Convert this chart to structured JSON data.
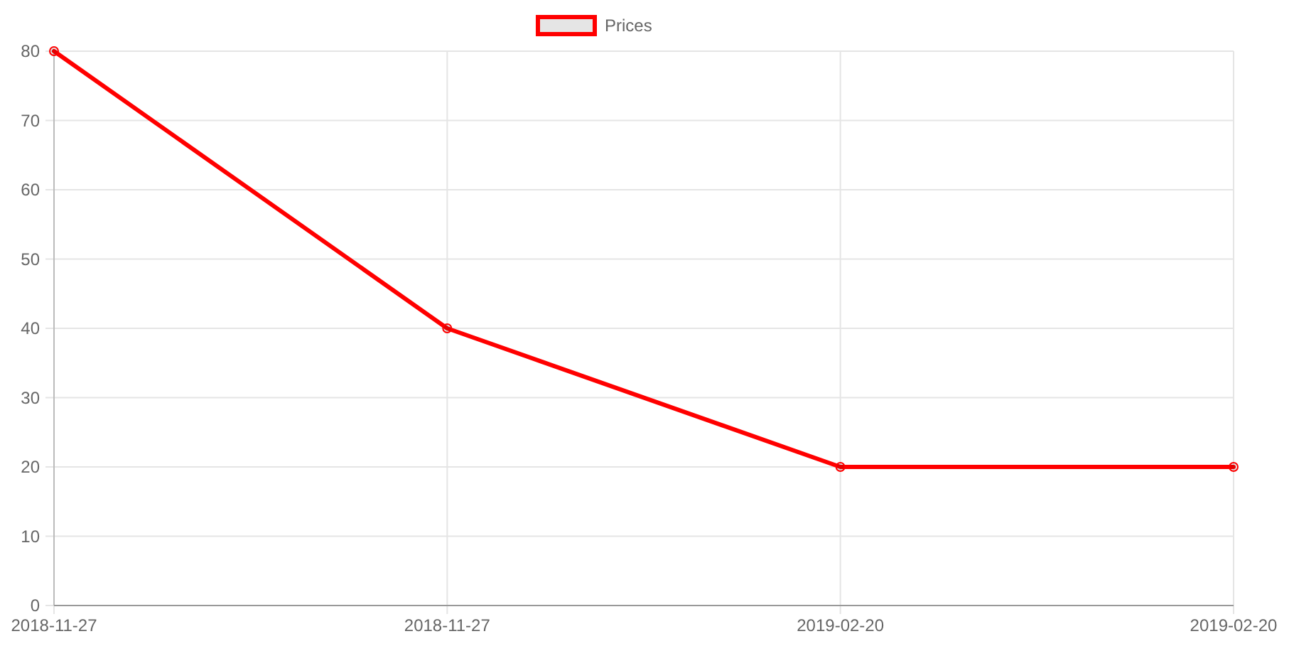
{
  "chart_data": {
    "type": "line",
    "categories": [
      "2018-11-27",
      "2018-11-27",
      "2019-02-20",
      "2019-02-20"
    ],
    "series": [
      {
        "name": "Prices",
        "color": "#ff0000",
        "values": [
          80,
          40,
          20,
          20
        ]
      }
    ],
    "ylim": [
      0,
      80
    ],
    "yticks": [
      0,
      10,
      20,
      30,
      40,
      50,
      60,
      70,
      80
    ],
    "grid": true,
    "legend": "top",
    "marker": "circle",
    "line_style": "solid"
  }
}
